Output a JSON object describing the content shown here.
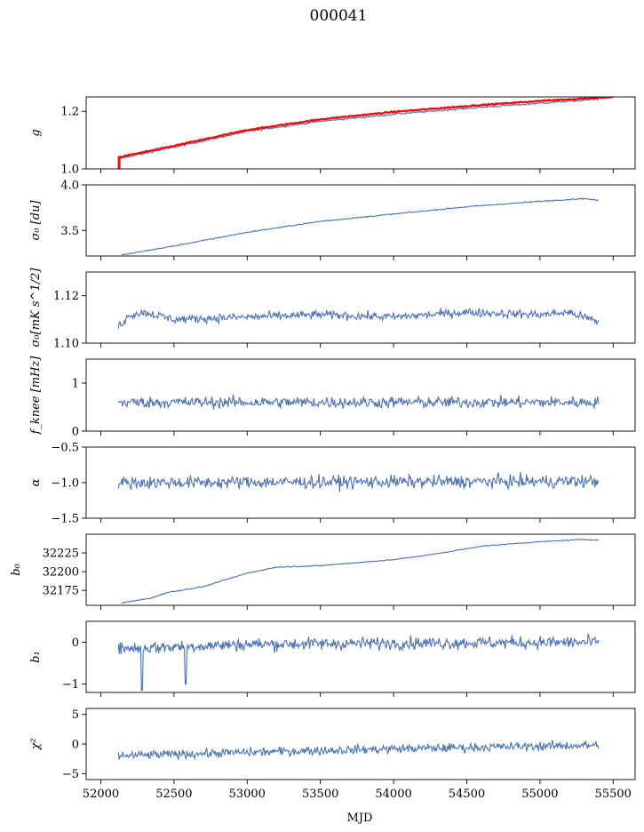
{
  "colors": {
    "series": "#4c72b0",
    "overlay": "#ff0000",
    "axes": "#000000",
    "background": "#ffffff"
  },
  "chart_data": {
    "type": "line",
    "title": "000041",
    "xlabel": "MJD",
    "xlim": [
      51900,
      55650
    ],
    "xticks": [
      52000,
      52500,
      53000,
      53500,
      54000,
      54500,
      55000,
      55500
    ],
    "x_range_data": [
      52120,
      55400
    ],
    "panels": [
      {
        "key": "g",
        "ylabel": "g",
        "ylim": [
          1.0,
          1.25
        ],
        "yticks": [
          1.0,
          1.2
        ],
        "ytick_labels": [
          "1.0",
          "1.2"
        ],
        "series": [
          {
            "kind": "blue",
            "trend": [
              [
                52120,
                1.035
              ],
              [
                52500,
                1.075
              ],
              [
                53000,
                1.13
              ],
              [
                53500,
                1.165
              ],
              [
                54000,
                1.19
              ],
              [
                54500,
                1.21
              ],
              [
                55000,
                1.228
              ],
              [
                55400,
                1.242
              ]
            ],
            "noise": 0.003
          },
          {
            "kind": "red",
            "trend": [
              [
                52120,
                1.04
              ],
              [
                52500,
                1.08
              ],
              [
                53000,
                1.135
              ],
              [
                53500,
                1.172
              ],
              [
                54000,
                1.198
              ],
              [
                54500,
                1.218
              ],
              [
                55000,
                1.236
              ],
              [
                55500,
                1.25
              ]
            ],
            "noise": 0.002,
            "spike": {
              "x": 52125,
              "from": 1.0,
              "to": 1.042
            }
          }
        ]
      },
      {
        "key": "sigma0_du",
        "ylabel": "σ₀ [du]",
        "ylim": [
          3.22,
          4.0
        ],
        "yticks": [
          3.5,
          4.0
        ],
        "ytick_labels": [
          "3.5",
          "4.0"
        ],
        "series": [
          {
            "kind": "blue",
            "trend": [
              [
                52140,
                3.23
              ],
              [
                52500,
                3.33
              ],
              [
                53000,
                3.48
              ],
              [
                53500,
                3.6
              ],
              [
                54000,
                3.68
              ],
              [
                54500,
                3.76
              ],
              [
                55000,
                3.82
              ],
              [
                55300,
                3.85
              ],
              [
                55400,
                3.83
              ]
            ],
            "noise": 0.006
          }
        ]
      },
      {
        "key": "sigma0_mks",
        "ylabel": "σ₀[mK s^1/2]",
        "ylim": [
          1.1,
          1.13
        ],
        "yticks": [
          1.1,
          1.12
        ],
        "ytick_labels": [
          "1.10",
          "1.12"
        ],
        "series": [
          {
            "kind": "blue",
            "trend": [
              [
                52120,
                1.107
              ],
              [
                52200,
                1.112
              ],
              [
                52300,
                1.113
              ],
              [
                52500,
                1.11
              ],
              [
                53000,
                1.111
              ],
              [
                53500,
                1.112
              ],
              [
                54000,
                1.111
              ],
              [
                54500,
                1.113
              ],
              [
                55000,
                1.112
              ],
              [
                55200,
                1.113
              ],
              [
                55300,
                1.111
              ],
              [
                55400,
                1.109
              ]
            ],
            "noise": 0.0018
          }
        ]
      },
      {
        "key": "fknee",
        "ylabel": "f_knee [mHz]",
        "ylim": [
          0,
          1.5
        ],
        "yticks": [
          0,
          1
        ],
        "ytick_labels": [
          "0",
          "1"
        ],
        "series": [
          {
            "kind": "blue",
            "trend": [
              [
                52120,
                0.6
              ],
              [
                55400,
                0.6
              ]
            ],
            "noise": 0.12
          }
        ]
      },
      {
        "key": "alpha",
        "ylabel": "α",
        "ylim": [
          -1.5,
          -0.5
        ],
        "yticks": [
          -1.5,
          -1.0,
          -0.5
        ],
        "ytick_labels": [
          "−1.5",
          "−1.0",
          "−0.5"
        ],
        "series": [
          {
            "kind": "blue",
            "trend": [
              [
                52120,
                -1.0
              ],
              [
                55400,
                -0.98
              ]
            ],
            "noise": 0.09
          }
        ]
      },
      {
        "key": "b0",
        "ylabel": "b₀",
        "ylim": [
          32155,
          32250
        ],
        "yticks": [
          32175,
          32200,
          32225
        ],
        "ytick_labels": [
          "32175",
          "32200",
          "32225"
        ],
        "series": [
          {
            "kind": "blue",
            "trend": [
              [
                52140,
                32158
              ],
              [
                52350,
                32165
              ],
              [
                52450,
                32172
              ],
              [
                52700,
                32180
              ],
              [
                53000,
                32198
              ],
              [
                53200,
                32206
              ],
              [
                53500,
                32208
              ],
              [
                54000,
                32216
              ],
              [
                54300,
                32224
              ],
              [
                54600,
                32234
              ],
              [
                55000,
                32240
              ],
              [
                55300,
                32243
              ],
              [
                55400,
                32242
              ]
            ],
            "noise": 0.6
          }
        ]
      },
      {
        "key": "b1",
        "ylabel": "b₁",
        "ylim": [
          -1.2,
          0.5
        ],
        "yticks": [
          -1,
          0
        ],
        "ytick_labels": [
          "−1",
          "0"
        ],
        "series": [
          {
            "kind": "blue",
            "trend": [
              [
                52120,
                -0.15
              ],
              [
                53000,
                -0.05
              ],
              [
                54000,
                -0.02
              ],
              [
                55400,
                0.0
              ]
            ],
            "noise": 0.15,
            "dips": [
              [
                52280,
                -1.15
              ],
              [
                52580,
                -1.0
              ]
            ]
          }
        ]
      },
      {
        "key": "chi2",
        "ylabel": "χ²",
        "ylim": [
          -6,
          6
        ],
        "yticks": [
          -5,
          0,
          5
        ],
        "ytick_labels": [
          "−5",
          "0",
          "5"
        ],
        "series": [
          {
            "kind": "blue",
            "trend": [
              [
                52120,
                -2.0
              ],
              [
                53000,
                -1.4
              ],
              [
                54000,
                -0.8
              ],
              [
                55400,
                -0.2
              ]
            ],
            "noise": 0.75
          }
        ]
      }
    ]
  }
}
